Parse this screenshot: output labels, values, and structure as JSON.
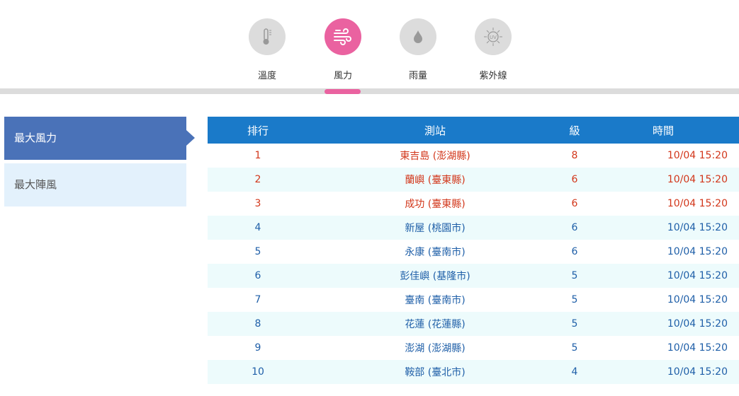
{
  "tabs": [
    {
      "label": "溫度",
      "icon": "thermometer-icon"
    },
    {
      "label": "風力",
      "icon": "wind-icon",
      "active": true
    },
    {
      "label": "雨量",
      "icon": "raindrop-icon"
    },
    {
      "label": "紫外線",
      "icon": "uv-sun-icon"
    }
  ],
  "sidebar": {
    "items": [
      {
        "label": "最大風力",
        "active": true
      },
      {
        "label": "最大陣風"
      }
    ]
  },
  "table": {
    "headers": [
      "排行",
      "測站",
      "級",
      "時間"
    ],
    "rows": [
      [
        "1",
        "東吉島 (澎湖縣)",
        "8",
        "10/04 15:20"
      ],
      [
        "2",
        "蘭嶼 (臺東縣)",
        "6",
        "10/04 15:20"
      ],
      [
        "3",
        "成功 (臺東縣)",
        "6",
        "10/04 15:20"
      ],
      [
        "4",
        "新屋 (桃園市)",
        "6",
        "10/04 15:20"
      ],
      [
        "5",
        "永康 (臺南市)",
        "6",
        "10/04 15:20"
      ],
      [
        "6",
        "彭佳嶼 (基隆市)",
        "5",
        "10/04 15:20"
      ],
      [
        "7",
        "臺南 (臺南市)",
        "5",
        "10/04 15:20"
      ],
      [
        "8",
        "花蓮 (花蓮縣)",
        "5",
        "10/04 15:20"
      ],
      [
        "9",
        "澎湖 (澎湖縣)",
        "5",
        "10/04 15:20"
      ],
      [
        "10",
        "鞍部 (臺北市)",
        "4",
        "10/04 15:20"
      ]
    ]
  },
  "colors": {
    "accent": "#ea62a0",
    "header": "#1a7ac9",
    "top3": "#d2361a",
    "rest": "#1f5fa8"
  }
}
